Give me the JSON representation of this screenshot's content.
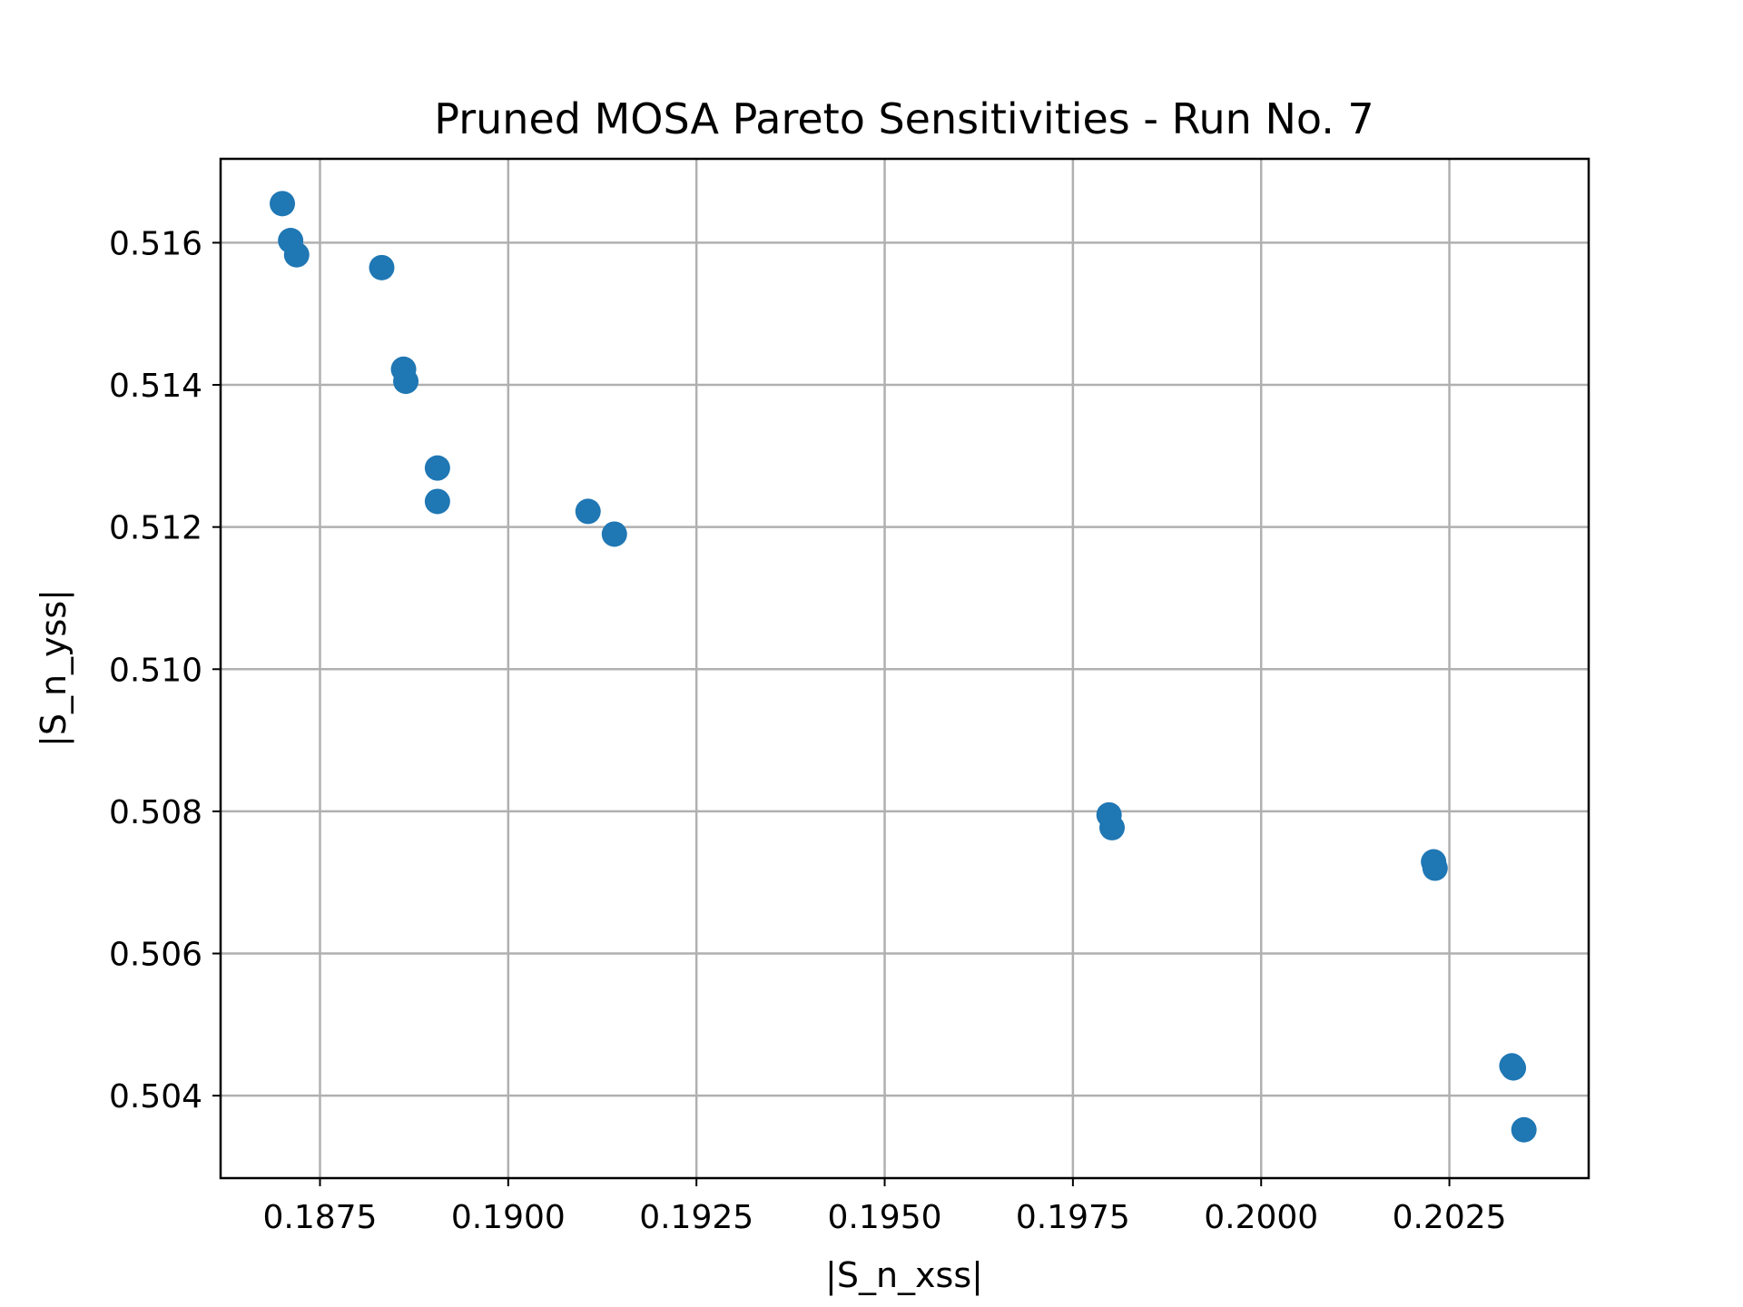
{
  "chart_data": {
    "type": "scatter",
    "title": "Pruned MOSA Pareto Sensitivities - Run No. 7",
    "xlabel": "|S_n_xss|",
    "ylabel": "|S_n_yss|",
    "xlim": [
      0.18618,
      0.20435
    ],
    "ylim": [
      0.50284,
      0.51718
    ],
    "grid": true,
    "color": "#1f77b4",
    "xticks": [
      {
        "value": 0.1875,
        "label": "0.1875"
      },
      {
        "value": 0.19,
        "label": "0.1900"
      },
      {
        "value": 0.1925,
        "label": "0.1925"
      },
      {
        "value": 0.195,
        "label": "0.1950"
      },
      {
        "value": 0.1975,
        "label": "0.1975"
      },
      {
        "value": 0.2,
        "label": "0.2000"
      },
      {
        "value": 0.2025,
        "label": "0.2025"
      }
    ],
    "yticks": [
      {
        "value": 0.504,
        "label": "0.504"
      },
      {
        "value": 0.506,
        "label": "0.506"
      },
      {
        "value": 0.508,
        "label": "0.508"
      },
      {
        "value": 0.51,
        "label": "0.510"
      },
      {
        "value": 0.512,
        "label": "0.512"
      },
      {
        "value": 0.514,
        "label": "0.514"
      },
      {
        "value": 0.516,
        "label": "0.516"
      }
    ],
    "points": [
      {
        "x": 0.187,
        "y": 0.51655
      },
      {
        "x": 0.18711,
        "y": 0.51603
      },
      {
        "x": 0.18719,
        "y": 0.51583
      },
      {
        "x": 0.18832,
        "y": 0.51565
      },
      {
        "x": 0.18861,
        "y": 0.51422
      },
      {
        "x": 0.18864,
        "y": 0.51405
      },
      {
        "x": 0.18906,
        "y": 0.51283
      },
      {
        "x": 0.18906,
        "y": 0.51236
      },
      {
        "x": 0.19106,
        "y": 0.51222
      },
      {
        "x": 0.19141,
        "y": 0.5119
      },
      {
        "x": 0.19798,
        "y": 0.50795
      },
      {
        "x": 0.19802,
        "y": 0.50777
      },
      {
        "x": 0.20229,
        "y": 0.50729
      },
      {
        "x": 0.20231,
        "y": 0.5072
      },
      {
        "x": 0.20333,
        "y": 0.50442
      },
      {
        "x": 0.20335,
        "y": 0.50439
      },
      {
        "x": 0.20349,
        "y": 0.50352
      }
    ]
  }
}
